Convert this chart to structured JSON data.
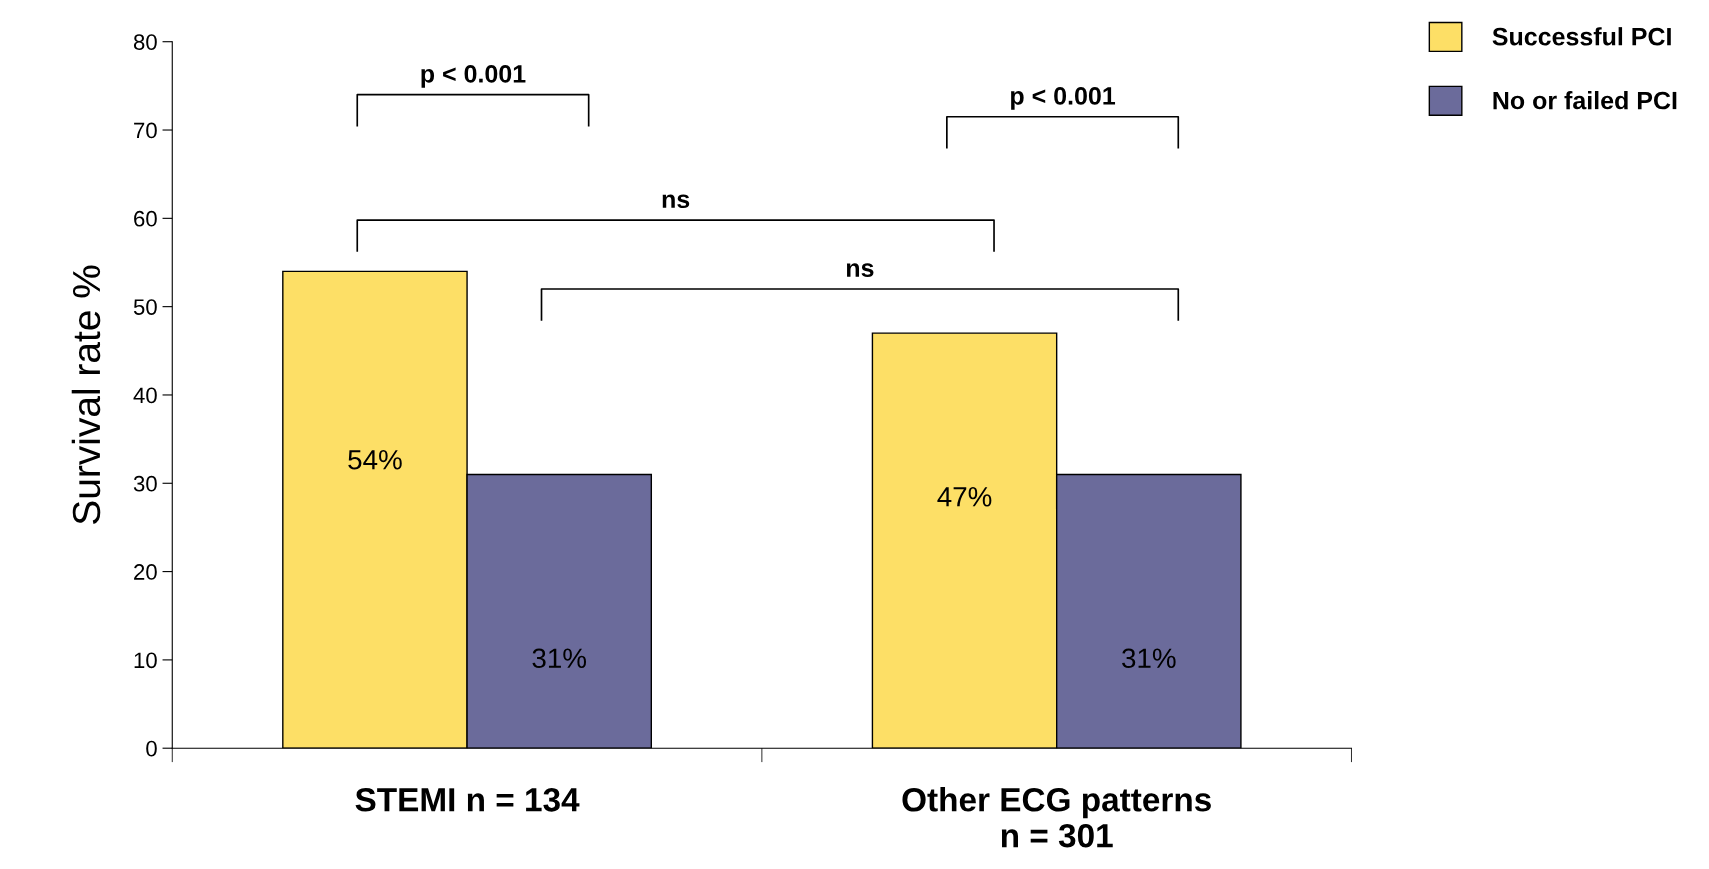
{
  "chart_data": {
    "type": "bar",
    "ylabel": "Survival rate %",
    "categories": [
      "STEMI n = 134",
      "Other ECG patterns\nn = 301"
    ],
    "series": [
      {
        "name": "Successful PCI",
        "color": "#fddf66",
        "values": [
          54,
          47
        ],
        "value_labels": [
          "54%",
          "47%"
        ]
      },
      {
        "name": "No or failed PCI",
        "color": "#6b6b9b",
        "values": [
          31,
          31
        ],
        "value_labels": [
          "31%",
          "31%"
        ]
      }
    ],
    "ylim": [
      0,
      80
    ],
    "yticks": [
      0,
      10,
      20,
      30,
      40,
      50,
      60,
      70,
      80
    ],
    "grid": false,
    "legend": "top right",
    "annotations": [
      "p < 0.001",
      "p < 0.001",
      "ns",
      "ns"
    ]
  }
}
